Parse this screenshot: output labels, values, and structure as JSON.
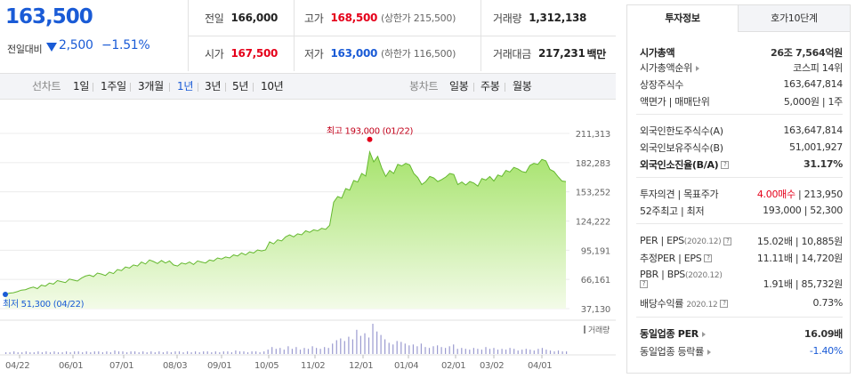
{
  "price": {
    "current": "163,500",
    "change_label": "전일대비",
    "change_value": "2,500",
    "change_percent": "−1.51%"
  },
  "quote": {
    "prev_close_label": "전일",
    "prev_close": "166,000",
    "high_label": "고가",
    "high": "168,500",
    "upper_limit": "(상한가 215,500)",
    "volume_label": "거래량",
    "volume": "1,312,138",
    "open_label": "시가",
    "open": "167,500",
    "low_label": "저가",
    "low": "163,000",
    "lower_limit": "(하한가 116,500)",
    "amount_label": "거래대금",
    "amount": "217,231",
    "amount_unit": "백만"
  },
  "tabs": {
    "line_chart": "선차트",
    "periods": [
      "1일",
      "1주일",
      "3개월",
      "1년",
      "3년",
      "5년",
      "10년"
    ],
    "selected_period": "1년",
    "candle_chart": "봉차트",
    "candle_periods": [
      "일봉",
      "주봉",
      "월봉"
    ]
  },
  "chart_data": {
    "type": "area",
    "x_ticks": [
      "04/22",
      "06/01",
      "07/01",
      "08/03",
      "09/01",
      "10/05",
      "11/02",
      "12/01",
      "01/04",
      "02/01",
      "03/02",
      "04/01"
    ],
    "y_ticks": [
      "211,313",
      "182,283",
      "153,252",
      "124,222",
      "95,191",
      "66,161",
      "37,130"
    ],
    "ylim": [
      37130,
      211313
    ],
    "high_annotation": "최고 193,000 (01/22)",
    "low_annotation": "최저 51,300 (04/22)",
    "volume_label": "거래량",
    "series": [
      {
        "values": [
          51300,
          52500,
          53000,
          54000,
          55500,
          56000,
          57500,
          58500,
          57000,
          60500,
          59500,
          62500,
          61500,
          65000,
          64000,
          63000,
          66500,
          65500,
          64500,
          67500,
          69500,
          70500,
          69000,
          72500,
          71500,
          70000,
          73500,
          72000,
          76000,
          75000,
          78500,
          77500,
          80500,
          79500,
          83500,
          81500,
          85500,
          84000,
          82000,
          85000,
          82500,
          84500,
          80500,
          79500,
          82500,
          81500,
          83500,
          81000,
          84500,
          83500,
          82500,
          85500,
          84500,
          87500,
          86500,
          88500,
          87500,
          90500,
          89500,
          92500,
          90500,
          93500,
          92500,
          95500,
          94500,
          95500,
          103500,
          101500,
          105500,
          104500,
          108500,
          110500,
          108500,
          111500,
          110500,
          114500,
          113000,
          115500,
          114500,
          117000,
          116000,
          120000,
          143000,
          148500,
          147000,
          156500,
          155000,
          164500,
          163000,
          171500,
          169000,
          193000,
          183000,
          188500,
          177000,
          168500,
          174500,
          171500,
          180500,
          179000,
          181500,
          180000,
          171500,
          167500,
          160500,
          163500,
          168500,
          167000,
          163500,
          165500,
          168000,
          171500,
          170500,
          160500,
          163000,
          160000,
          163500,
          162000,
          159000,
          166500,
          165000,
          168500,
          164000,
          170000,
          168500,
          174500,
          173000,
          177500,
          176000,
          173500,
          172500,
          179500,
          181500,
          180500,
          185500,
          184000,
          175500,
          173500,
          168500,
          164000,
          163500
        ]
      }
    ],
    "volume": [
      2,
      2,
      3,
      2,
      2,
      3,
      2,
      2,
      3,
      2,
      3,
      2,
      3,
      2,
      2,
      3,
      2,
      3,
      3,
      2,
      3,
      2,
      3,
      3,
      2,
      3,
      2,
      4,
      3,
      3,
      2,
      3,
      3,
      2,
      3,
      2,
      3,
      2,
      3,
      2,
      3,
      2,
      3,
      3,
      2,
      3,
      2,
      3,
      2,
      3,
      3,
      2,
      3,
      2,
      3,
      3,
      2,
      4,
      3,
      3,
      2,
      3,
      3,
      2,
      3,
      5,
      8,
      6,
      7,
      5,
      9,
      6,
      8,
      5,
      7,
      6,
      9,
      7,
      6,
      8,
      7,
      12,
      16,
      18,
      15,
      20,
      17,
      28,
      21,
      24,
      19,
      35,
      26,
      22,
      17,
      13,
      11,
      15,
      14,
      12,
      10,
      11,
      9,
      12,
      8,
      7,
      9,
      10,
      8,
      7,
      9,
      11,
      6,
      7,
      6,
      5,
      7,
      6,
      5,
      8,
      6,
      7,
      5,
      6,
      5,
      7,
      6,
      4,
      5,
      6,
      5,
      4,
      6,
      7,
      5,
      4,
      3,
      4,
      3,
      3
    ]
  },
  "info": {
    "tab_active": "투자정보",
    "tab_other": "호가10단계",
    "rows1": [
      {
        "k": "시가총액",
        "v": "26조 7,564억원"
      },
      {
        "k": "시가총액순위",
        "v": "코스피 14위"
      },
      {
        "k": "상장주식수",
        "v": "163,647,814"
      },
      {
        "k": "액면가 | 매매단위",
        "v": "5,000원 | 1주"
      }
    ],
    "rows2": [
      {
        "k": "외국인한도주식수(A)",
        "v": "163,647,814"
      },
      {
        "k": "외국인보유주식수(B)",
        "v": "51,001,927"
      },
      {
        "k": "외국인소진율(B/A)",
        "v": "31.17%"
      }
    ],
    "rows3": [
      {
        "k": "투자의견 | 목표주가",
        "v1": "4.00매수",
        "v2": "213,950"
      },
      {
        "k": "52주최고 | 최저",
        "v": "193,000 | 52,300"
      }
    ],
    "per": {
      "k": "PER | EPS",
      "date": "(2020.12)",
      "v": "15.02배 | 10,885원"
    },
    "est_per": {
      "k": "추정PER | EPS",
      "v": "11.11배 | 14,720원"
    },
    "pbr": {
      "k": "PBR | BPS",
      "date": "(2020.12)",
      "v": "1.91배 | 85,732원"
    },
    "div": {
      "k": "배당수익률",
      "date": "2020.12",
      "v": "0.73%"
    },
    "sector_per": {
      "k": "동일업종 PER",
      "v": "16.09배"
    },
    "sector_rate": {
      "k": "동일업종 등락률",
      "v": "-1.40%"
    }
  }
}
